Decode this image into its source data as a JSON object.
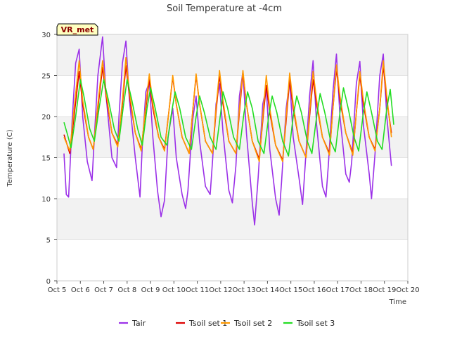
{
  "chart_data": {
    "type": "line",
    "title": "Soil Temperature at -4cm",
    "xlabel": "Time",
    "ylabel": "Temperature (C)",
    "site_label": "VR_met",
    "ylim": [
      0,
      30
    ],
    "xlim": [
      5,
      20
    ],
    "y_ticks": [
      0,
      5,
      10,
      15,
      20,
      25,
      30
    ],
    "x_ticks": [
      {
        "v": 5,
        "label": "Oct 5"
      },
      {
        "v": 6,
        "label": "Oct 6"
      },
      {
        "v": 7,
        "label": "Oct 7"
      },
      {
        "v": 8,
        "label": "Oct 8"
      },
      {
        "v": 9,
        "label": "Oct 9"
      },
      {
        "v": 10,
        "label": "Oct 10"
      },
      {
        "v": 11,
        "label": "Oct 11"
      },
      {
        "v": 12,
        "label": "Oct 12"
      },
      {
        "v": 13,
        "label": "Oct 13"
      },
      {
        "v": 14,
        "label": "Oct 14"
      },
      {
        "v": 15,
        "label": "Oct 15"
      },
      {
        "v": 16,
        "label": "Oct 16"
      },
      {
        "v": 17,
        "label": "Oct 17"
      },
      {
        "v": 18,
        "label": "Oct 18"
      },
      {
        "v": 19,
        "label": "Oct 19"
      },
      {
        "v": 20,
        "label": "Oct 20"
      }
    ],
    "x_unit": "day of October",
    "grid": "horizontal bands",
    "legend_position": "bottom",
    "series": [
      {
        "name": "Tair",
        "color": "#9b30e8",
        "points": [
          [
            5.3,
            15.5
          ],
          [
            5.4,
            10.5
          ],
          [
            5.5,
            10.2
          ],
          [
            5.65,
            19.5
          ],
          [
            5.8,
            26.5
          ],
          [
            5.95,
            28.2
          ],
          [
            6.1,
            20.0
          ],
          [
            6.3,
            14.5
          ],
          [
            6.5,
            12.2
          ],
          [
            6.6,
            17.5
          ],
          [
            6.75,
            25.0
          ],
          [
            6.95,
            29.7
          ],
          [
            7.1,
            22.5
          ],
          [
            7.35,
            15.0
          ],
          [
            7.55,
            13.8
          ],
          [
            7.65,
            20.0
          ],
          [
            7.8,
            26.5
          ],
          [
            7.95,
            29.2
          ],
          [
            8.1,
            22.0
          ],
          [
            8.35,
            15.0
          ],
          [
            8.55,
            10.2
          ],
          [
            8.65,
            16.5
          ],
          [
            8.8,
            23.0
          ],
          [
            8.95,
            24.2
          ],
          [
            9.1,
            17.5
          ],
          [
            9.3,
            11.0
          ],
          [
            9.45,
            7.8
          ],
          [
            9.6,
            9.8
          ],
          [
            9.75,
            17.5
          ],
          [
            9.95,
            21.0
          ],
          [
            10.1,
            15.0
          ],
          [
            10.35,
            10.5
          ],
          [
            10.5,
            8.8
          ],
          [
            10.6,
            11.0
          ],
          [
            10.8,
            19.5
          ],
          [
            10.95,
            22.5
          ],
          [
            11.1,
            17.0
          ],
          [
            11.35,
            11.5
          ],
          [
            11.55,
            10.5
          ],
          [
            11.65,
            14.5
          ],
          [
            11.8,
            21.5
          ],
          [
            11.95,
            24.0
          ],
          [
            12.1,
            18.0
          ],
          [
            12.35,
            11.0
          ],
          [
            12.5,
            9.5
          ],
          [
            12.65,
            14.0
          ],
          [
            12.8,
            22.5
          ],
          [
            12.95,
            25.5
          ],
          [
            13.1,
            18.0
          ],
          [
            13.35,
            9.5
          ],
          [
            13.45,
            6.8
          ],
          [
            13.6,
            12.5
          ],
          [
            13.8,
            21.5
          ],
          [
            13.95,
            23.5
          ],
          [
            14.1,
            16.0
          ],
          [
            14.35,
            10.0
          ],
          [
            14.5,
            8.0
          ],
          [
            14.6,
            12.0
          ],
          [
            14.8,
            21.0
          ],
          [
            14.95,
            24.5
          ],
          [
            15.1,
            17.5
          ],
          [
            15.35,
            12.5
          ],
          [
            15.5,
            9.3
          ],
          [
            15.6,
            13.5
          ],
          [
            15.8,
            22.5
          ],
          [
            15.95,
            26.8
          ],
          [
            16.1,
            19.0
          ],
          [
            16.35,
            11.5
          ],
          [
            16.5,
            10.2
          ],
          [
            16.6,
            14.0
          ],
          [
            16.8,
            23.0
          ],
          [
            16.95,
            27.6
          ],
          [
            17.1,
            20.0
          ],
          [
            17.35,
            13.0
          ],
          [
            17.5,
            12.0
          ],
          [
            17.6,
            14.5
          ],
          [
            17.8,
            24.0
          ],
          [
            17.95,
            26.7
          ],
          [
            18.1,
            19.0
          ],
          [
            18.35,
            13.0
          ],
          [
            18.45,
            10.0
          ],
          [
            18.6,
            15.5
          ],
          [
            18.8,
            25.0
          ],
          [
            18.95,
            27.6
          ],
          [
            19.1,
            20.0
          ],
          [
            19.3,
            14.0
          ]
        ]
      },
      {
        "name": "Tsoil set 1",
        "color": "#dd0000",
        "points": [
          [
            5.3,
            17.8
          ],
          [
            5.55,
            15.5
          ],
          [
            5.75,
            20.5
          ],
          [
            5.95,
            25.5
          ],
          [
            6.1,
            21.5
          ],
          [
            6.35,
            17.5
          ],
          [
            6.55,
            16.0
          ],
          [
            6.75,
            21.0
          ],
          [
            6.95,
            26.0
          ],
          [
            7.1,
            22.5
          ],
          [
            7.35,
            18.0
          ],
          [
            7.6,
            16.5
          ],
          [
            7.8,
            21.5
          ],
          [
            7.95,
            26.2
          ],
          [
            8.1,
            22.5
          ],
          [
            8.35,
            18.0
          ],
          [
            8.6,
            16.0
          ],
          [
            8.8,
            21.0
          ],
          [
            8.95,
            24.5
          ],
          [
            9.1,
            21.0
          ],
          [
            9.35,
            17.5
          ],
          [
            9.6,
            16.0
          ],
          [
            9.8,
            21.0
          ],
          [
            9.95,
            24.8
          ],
          [
            10.1,
            21.5
          ],
          [
            10.35,
            17.5
          ],
          [
            10.65,
            15.5
          ],
          [
            10.8,
            20.5
          ],
          [
            10.95,
            25.0
          ],
          [
            11.1,
            21.5
          ],
          [
            11.35,
            17.0
          ],
          [
            11.65,
            15.5
          ],
          [
            11.8,
            20.5
          ],
          [
            11.95,
            25.0
          ],
          [
            12.1,
            21.5
          ],
          [
            12.35,
            17.0
          ],
          [
            12.65,
            15.5
          ],
          [
            12.8,
            20.5
          ],
          [
            12.95,
            25.3
          ],
          [
            13.1,
            21.5
          ],
          [
            13.35,
            17.0
          ],
          [
            13.65,
            14.8
          ],
          [
            13.8,
            19.5
          ],
          [
            13.95,
            23.8
          ],
          [
            14.1,
            20.5
          ],
          [
            14.35,
            16.5
          ],
          [
            14.65,
            14.7
          ],
          [
            14.8,
            19.5
          ],
          [
            14.95,
            24.5
          ],
          [
            15.1,
            21.0
          ],
          [
            15.35,
            17.0
          ],
          [
            15.65,
            15.0
          ],
          [
            15.8,
            20.0
          ],
          [
            15.95,
            24.5
          ],
          [
            16.1,
            21.5
          ],
          [
            16.35,
            17.5
          ],
          [
            16.65,
            15.5
          ],
          [
            16.8,
            21.0
          ],
          [
            16.95,
            25.8
          ],
          [
            17.1,
            22.0
          ],
          [
            17.35,
            18.0
          ],
          [
            17.65,
            15.5
          ],
          [
            17.8,
            20.5
          ],
          [
            17.95,
            25.0
          ],
          [
            18.1,
            21.5
          ],
          [
            18.35,
            17.5
          ],
          [
            18.6,
            16.0
          ],
          [
            18.8,
            21.0
          ],
          [
            18.95,
            26.2
          ],
          [
            19.1,
            22.0
          ],
          [
            19.3,
            18.0
          ]
        ]
      },
      {
        "name": "Tsoil set 2",
        "color": "#ff9900",
        "points": [
          [
            5.3,
            17.5
          ],
          [
            5.55,
            15.8
          ],
          [
            5.75,
            21.5
          ],
          [
            5.95,
            26.8
          ],
          [
            6.1,
            22.0
          ],
          [
            6.35,
            17.5
          ],
          [
            6.55,
            16.0
          ],
          [
            6.75,
            21.5
          ],
          [
            6.95,
            26.8
          ],
          [
            7.1,
            23.0
          ],
          [
            7.35,
            18.0
          ],
          [
            7.6,
            16.3
          ],
          [
            7.8,
            22.0
          ],
          [
            7.95,
            27.2
          ],
          [
            8.1,
            23.0
          ],
          [
            8.35,
            18.0
          ],
          [
            8.6,
            15.8
          ],
          [
            8.8,
            21.5
          ],
          [
            8.95,
            25.2
          ],
          [
            9.1,
            21.5
          ],
          [
            9.35,
            17.5
          ],
          [
            9.6,
            15.8
          ],
          [
            9.8,
            21.0
          ],
          [
            9.95,
            25.0
          ],
          [
            10.1,
            21.5
          ],
          [
            10.35,
            17.5
          ],
          [
            10.65,
            15.5
          ],
          [
            10.8,
            20.5
          ],
          [
            10.95,
            25.2
          ],
          [
            11.1,
            21.5
          ],
          [
            11.35,
            17.0
          ],
          [
            11.65,
            15.5
          ],
          [
            11.8,
            21.0
          ],
          [
            11.95,
            25.6
          ],
          [
            12.1,
            22.0
          ],
          [
            12.35,
            17.0
          ],
          [
            12.65,
            15.5
          ],
          [
            12.8,
            21.0
          ],
          [
            12.95,
            25.6
          ],
          [
            13.1,
            21.5
          ],
          [
            13.35,
            17.0
          ],
          [
            13.65,
            14.5
          ],
          [
            13.8,
            20.0
          ],
          [
            13.95,
            25.0
          ],
          [
            14.1,
            21.0
          ],
          [
            14.35,
            16.5
          ],
          [
            14.65,
            14.5
          ],
          [
            14.8,
            20.0
          ],
          [
            14.95,
            25.3
          ],
          [
            15.1,
            21.5
          ],
          [
            15.35,
            17.0
          ],
          [
            15.65,
            15.0
          ],
          [
            15.8,
            20.5
          ],
          [
            15.95,
            25.5
          ],
          [
            16.1,
            22.0
          ],
          [
            16.35,
            17.5
          ],
          [
            16.65,
            15.3
          ],
          [
            16.8,
            21.0
          ],
          [
            16.95,
            26.3
          ],
          [
            17.1,
            22.5
          ],
          [
            17.35,
            18.0
          ],
          [
            17.65,
            15.3
          ],
          [
            17.8,
            20.5
          ],
          [
            17.95,
            25.5
          ],
          [
            18.1,
            22.0
          ],
          [
            18.35,
            17.5
          ],
          [
            18.6,
            15.8
          ],
          [
            18.8,
            21.0
          ],
          [
            18.95,
            26.8
          ],
          [
            19.1,
            22.5
          ],
          [
            19.3,
            17.5
          ]
        ]
      },
      {
        "name": "Tsoil set 3",
        "color": "#22dd22",
        "points": [
          [
            5.3,
            19.3
          ],
          [
            5.45,
            17.8
          ],
          [
            5.6,
            16.2
          ],
          [
            5.8,
            20.0
          ],
          [
            6.0,
            24.5
          ],
          [
            6.15,
            22.5
          ],
          [
            6.4,
            18.5
          ],
          [
            6.6,
            17.0
          ],
          [
            6.8,
            21.0
          ],
          [
            7.0,
            24.5
          ],
          [
            7.2,
            22.0
          ],
          [
            7.45,
            18.5
          ],
          [
            7.65,
            17.0
          ],
          [
            7.85,
            21.5
          ],
          [
            8.0,
            24.5
          ],
          [
            8.2,
            22.0
          ],
          [
            8.45,
            18.5
          ],
          [
            8.65,
            16.5
          ],
          [
            8.85,
            21.0
          ],
          [
            9.0,
            23.5
          ],
          [
            9.2,
            21.0
          ],
          [
            9.45,
            17.5
          ],
          [
            9.7,
            16.5
          ],
          [
            9.9,
            20.5
          ],
          [
            10.05,
            23.0
          ],
          [
            10.25,
            21.0
          ],
          [
            10.5,
            17.5
          ],
          [
            10.75,
            16.0
          ],
          [
            10.95,
            20.0
          ],
          [
            11.1,
            22.5
          ],
          [
            11.3,
            20.5
          ],
          [
            11.55,
            17.5
          ],
          [
            11.8,
            16.0
          ],
          [
            12.0,
            20.5
          ],
          [
            12.1,
            23.0
          ],
          [
            12.3,
            21.0
          ],
          [
            12.55,
            17.5
          ],
          [
            12.8,
            16.0
          ],
          [
            13.0,
            20.5
          ],
          [
            13.15,
            23.0
          ],
          [
            13.35,
            21.0
          ],
          [
            13.6,
            17.0
          ],
          [
            13.85,
            15.5
          ],
          [
            14.05,
            20.0
          ],
          [
            14.2,
            22.5
          ],
          [
            14.4,
            20.5
          ],
          [
            14.65,
            17.0
          ],
          [
            14.9,
            15.2
          ],
          [
            15.1,
            20.0
          ],
          [
            15.25,
            22.5
          ],
          [
            15.45,
            20.5
          ],
          [
            15.7,
            17.0
          ],
          [
            15.9,
            15.5
          ],
          [
            16.1,
            20.0
          ],
          [
            16.25,
            22.8
          ],
          [
            16.45,
            20.5
          ],
          [
            16.7,
            17.0
          ],
          [
            16.9,
            15.7
          ],
          [
            17.1,
            20.5
          ],
          [
            17.25,
            23.5
          ],
          [
            17.45,
            21.0
          ],
          [
            17.7,
            17.5
          ],
          [
            17.9,
            15.8
          ],
          [
            18.1,
            20.5
          ],
          [
            18.25,
            23.0
          ],
          [
            18.45,
            20.5
          ],
          [
            18.7,
            17.0
          ],
          [
            18.9,
            16.0
          ],
          [
            19.1,
            21.0
          ],
          [
            19.25,
            23.3
          ],
          [
            19.4,
            19.0
          ]
        ]
      }
    ]
  }
}
